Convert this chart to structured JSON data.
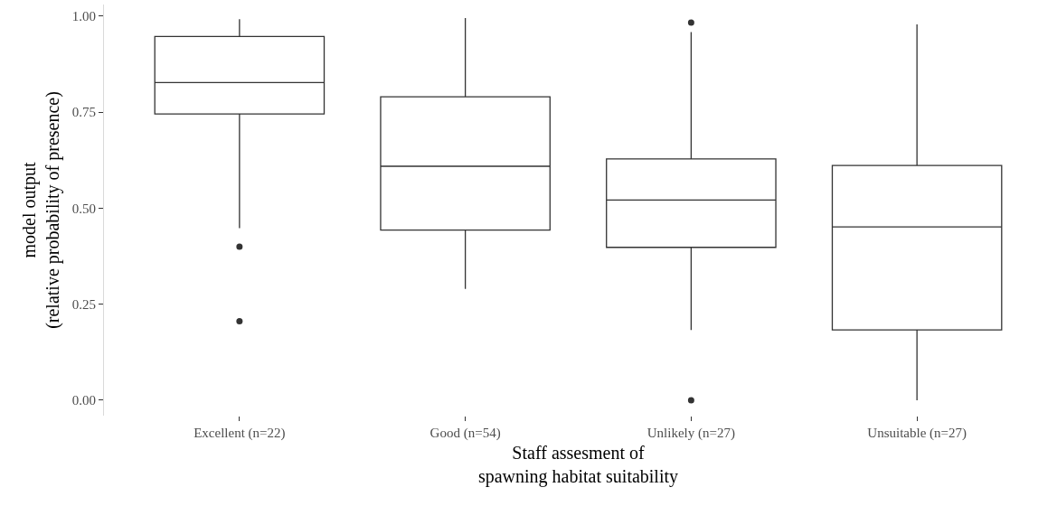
{
  "chart_data": {
    "type": "box",
    "xlabel": "Staff assesment of\nspawning habitat suitability",
    "ylabel": "model output\n(relative probability of presence)",
    "categories": [
      "Excellent (n=22)",
      "Good (n=54)",
      "Unlikely (n=27)",
      "Unsuitable (n=27)"
    ],
    "boxes": [
      {
        "low": 0.448,
        "q1": 0.745,
        "median": 0.827,
        "q3": 0.947,
        "high": 0.992,
        "outliers": [
          0.4,
          0.206
        ]
      },
      {
        "low": 0.29,
        "q1": 0.443,
        "median": 0.609,
        "q3": 0.79,
        "high": 0.995
      },
      {
        "low": 0.183,
        "q1": 0.398,
        "median": 0.521,
        "q3": 0.628,
        "high": 0.958,
        "outliers": [
          0.983,
          0.0
        ]
      },
      {
        "low": 0.0,
        "q1": 0.183,
        "median": 0.451,
        "q3": 0.611,
        "high": 0.978
      }
    ],
    "color": "#333333",
    "ylim": [
      -0.04,
      1.03
    ],
    "yticks": [
      {
        "value": 0,
        "label": "0.00"
      },
      {
        "value": 0.25,
        "label": "0.25"
      },
      {
        "value": 0.5,
        "label": "0.50"
      },
      {
        "value": 0.75,
        "label": "0.75"
      },
      {
        "value": 1,
        "label": "1.00"
      }
    ]
  }
}
